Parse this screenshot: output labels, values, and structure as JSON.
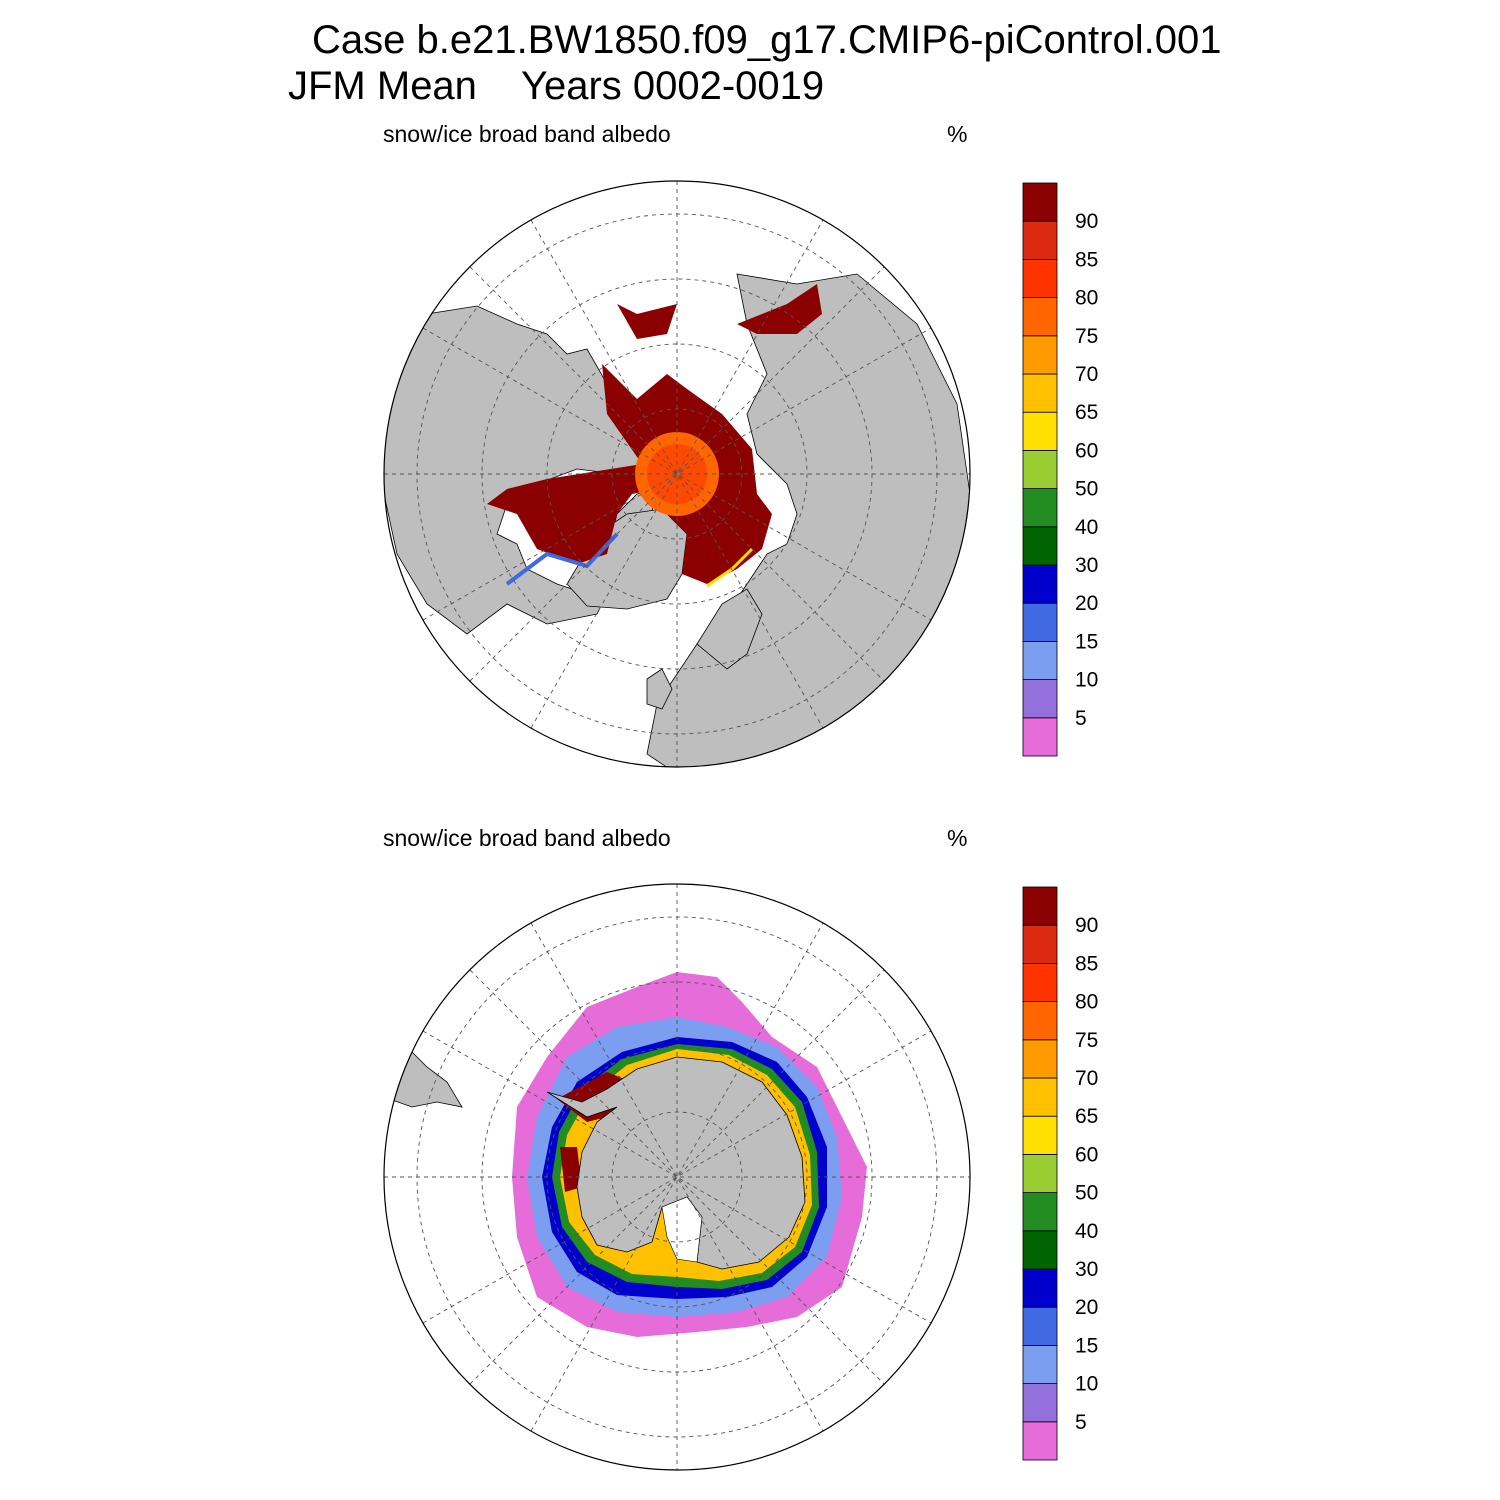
{
  "header": {
    "case_line": "Case b.e21.BW1850.f09_g17.CMIP6-piControl.001",
    "season": "JFM Mean",
    "years": "Years 0002-0019"
  },
  "colors": {
    "land": "#bebebe",
    "ocean": "#ffffff",
    "levels": [
      "#e66cd9",
      "#9370db",
      "#7b9ef0",
      "#4169e1",
      "#0000cd",
      "#006400",
      "#228b22",
      "#9acd32",
      "#ffe000",
      "#ffc000",
      "#ff9a00",
      "#ff6600",
      "#ff3300",
      "#dc2a10",
      "#8b0000"
    ]
  },
  "panels": [
    {
      "id": "north",
      "hemisphere": "Northern Hemisphere",
      "title": "snow/ice broad band albedo",
      "units": "%",
      "colorbar_labels": [
        "5",
        "10",
        "15",
        "20",
        "30",
        "40",
        "50",
        "60",
        "65",
        "70",
        "75",
        "80",
        "85",
        "90"
      ]
    },
    {
      "id": "south",
      "hemisphere": "Southern Hemisphere",
      "title": "snow/ice broad band albedo",
      "units": "%",
      "colorbar_labels": [
        "5",
        "10",
        "15",
        "20",
        "30",
        "40",
        "50",
        "60",
        "65",
        "70",
        "75",
        "80",
        "85",
        "90"
      ]
    }
  ]
}
